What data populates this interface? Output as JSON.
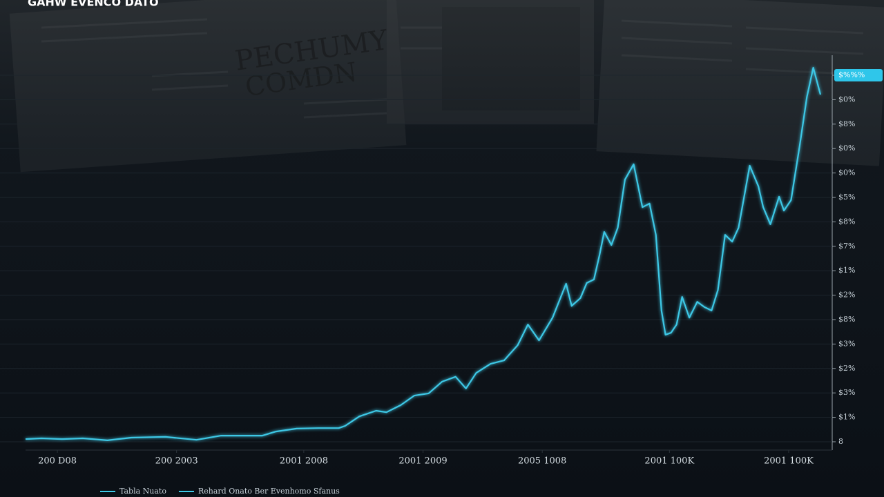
{
  "chart_data": {
    "type": "line",
    "title": "GAHW EVENCO DATO",
    "background_texts": [
      "PECHUMY",
      "COMDN"
    ],
    "series": [
      {
        "color": "#3ec8e6",
        "x": [
          0,
          2.0,
          4.6,
          7.2,
          10.3,
          13.3,
          17.6,
          21.5,
          24.6,
          29.8,
          31.5,
          34.1,
          36.8,
          39.4,
          40.2,
          42.0,
          44.1,
          45.4,
          47.2,
          48.9,
          50.7,
          52.4,
          54.1,
          55.4,
          56.7,
          58.5,
          60.2,
          61.9,
          63.2,
          64.6,
          66.3,
          68.0,
          68.7,
          69.8,
          70.6,
          71.5,
          72.2,
          72.8,
          73.7,
          74.5,
          75.4,
          76.5,
          77.6,
          78.5,
          79.3,
          80.0,
          80.5,
          81.2,
          81.9,
          82.6,
          83.5,
          84.5,
          85.4,
          86.3,
          87.1,
          88.0,
          88.9,
          89.7,
          91.1,
          92.2,
          92.8,
          93.7,
          94.8,
          95.4,
          96.3,
          97.4,
          98.3,
          99.1,
          100
        ],
        "values": [
          0.11,
          0.14,
          0.11,
          0.14,
          0.06,
          0.17,
          0.2,
          0.08,
          0.25,
          0.25,
          0.42,
          0.54,
          0.56,
          0.56,
          0.65,
          1.04,
          1.27,
          1.21,
          1.5,
          1.89,
          1.98,
          2.46,
          2.66,
          2.18,
          2.82,
          3.19,
          3.33,
          3.95,
          4.8,
          4.15,
          5.08,
          6.47,
          5.56,
          5.88,
          6.5,
          6.64,
          7.63,
          8.59,
          8.05,
          8.76,
          10.73,
          11.36,
          9.6,
          9.75,
          8.47,
          5.37,
          4.38,
          4.46,
          4.8,
          5.93,
          5.08,
          5.73,
          5.51,
          5.37,
          6.21,
          8.47,
          8.19,
          8.76,
          11.3,
          10.45,
          9.6,
          8.9,
          10.03,
          9.46,
          9.89,
          12.15,
          14.12,
          15.31,
          14.21
        ]
      }
    ],
    "legend_labels": [
      "Tabla Nuato",
      "Rehard Onato Ber Evenhomo Sfanus"
    ],
    "xlim": [
      0,
      100
    ],
    "xticks": [
      {
        "value": 4,
        "label": "200 D08"
      },
      {
        "value": 19,
        "label": "200 2003"
      },
      {
        "value": 35,
        "label": "2001 2008"
      },
      {
        "value": 50,
        "label": "2001 2009"
      },
      {
        "value": 65,
        "label": "2005 1008"
      },
      {
        "value": 81,
        "label": "2001 100K"
      },
      {
        "value": 96,
        "label": "2001 100K"
      }
    ],
    "ylim": [
      0,
      16
    ],
    "yticks": [
      {
        "value": 0,
        "label": "8"
      },
      {
        "value": 1,
        "label": "$1%"
      },
      {
        "value": 2,
        "label": "$3%"
      },
      {
        "value": 3,
        "label": "$2%"
      },
      {
        "value": 4,
        "label": "$3%"
      },
      {
        "value": 5,
        "label": "$8%"
      },
      {
        "value": 6,
        "label": "$2%"
      },
      {
        "value": 7,
        "label": "$1%"
      },
      {
        "value": 8,
        "label": "$7%"
      },
      {
        "value": 9,
        "label": "$8%"
      },
      {
        "value": 10,
        "label": "$5%"
      },
      {
        "value": 11,
        "label": "$0%"
      },
      {
        "value": 12,
        "label": "$0%"
      },
      {
        "value": 13,
        "label": "$8%"
      },
      {
        "value": 14,
        "label": "$0%"
      },
      {
        "value": 15,
        "label": "$%%%"
      }
    ],
    "grid": true
  }
}
